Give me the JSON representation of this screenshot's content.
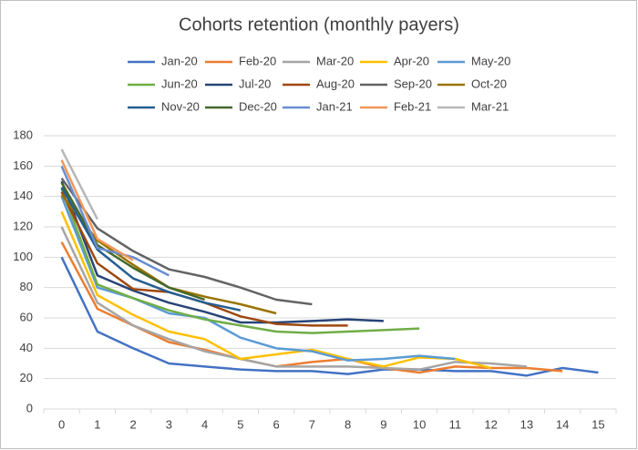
{
  "chart_data": {
    "type": "line",
    "title": "Cohorts retention (monthly payers)",
    "categories": [
      0,
      1,
      2,
      3,
      4,
      5,
      6,
      7,
      8,
      9,
      10,
      11,
      12,
      13,
      14,
      15
    ],
    "ylim": [
      0,
      180
    ],
    "yticks": [
      0,
      20,
      40,
      60,
      80,
      100,
      120,
      140,
      160,
      180
    ],
    "grid": true,
    "legend": "top",
    "series": [
      {
        "name": "Jan-20",
        "color": "#4472C4",
        "values": [
          100,
          51,
          40,
          30,
          28,
          26,
          25,
          25,
          23,
          26,
          26,
          25,
          25,
          22,
          27,
          24
        ]
      },
      {
        "name": "Feb-20",
        "color": "#ED7D31",
        "values": [
          110,
          66,
          55,
          44,
          39,
          33,
          28,
          31,
          33,
          27,
          24,
          28,
          27,
          27,
          25,
          null
        ]
      },
      {
        "name": "Mar-20",
        "color": "#A5A5A5",
        "values": [
          120,
          70,
          55,
          46,
          38,
          33,
          28,
          28,
          28,
          27,
          26,
          31,
          30,
          28,
          null,
          null
        ]
      },
      {
        "name": "Apr-20",
        "color": "#FFC000",
        "values": [
          130,
          75,
          62,
          51,
          46,
          33,
          36,
          39,
          33,
          28,
          34,
          33,
          27,
          null,
          null,
          null
        ]
      },
      {
        "name": "May-20",
        "color": "#5B9BD5",
        "values": [
          140,
          80,
          73,
          63,
          60,
          47,
          40,
          38,
          32,
          33,
          35,
          33,
          null,
          null,
          null,
          null
        ]
      },
      {
        "name": "Jun-20",
        "color": "#70AD47",
        "values": [
          145,
          82,
          73,
          65,
          59,
          55,
          51,
          50,
          51,
          52,
          53,
          null,
          null,
          null,
          null,
          null
        ]
      },
      {
        "name": "Jul-20",
        "color": "#264478",
        "values": [
          150,
          88,
          78,
          70,
          64,
          57,
          57,
          58,
          59,
          58,
          null,
          null,
          null,
          null,
          null,
          null
        ]
      },
      {
        "name": "Aug-20",
        "color": "#9E480E",
        "values": [
          143,
          96,
          79,
          77,
          70,
          61,
          56,
          55,
          55,
          null,
          null,
          null,
          null,
          null,
          null,
          null
        ]
      },
      {
        "name": "Sep-20",
        "color": "#636363",
        "values": [
          152,
          119,
          104,
          92,
          87,
          80,
          72,
          69,
          null,
          null,
          null,
          null,
          null,
          null,
          null,
          null
        ]
      },
      {
        "name": "Oct-20",
        "color": "#997300",
        "values": [
          141,
          111,
          95,
          80,
          74,
          69,
          63,
          null,
          null,
          null,
          null,
          null,
          null,
          null,
          null,
          null
        ]
      },
      {
        "name": "Nov-20",
        "color": "#255E91",
        "values": [
          146,
          105,
          86,
          77,
          70,
          65,
          null,
          null,
          null,
          null,
          null,
          null,
          null,
          null,
          null,
          null
        ]
      },
      {
        "name": "Dec-20",
        "color": "#43682B",
        "values": [
          149,
          108,
          93,
          80,
          72,
          null,
          null,
          null,
          null,
          null,
          null,
          null,
          null,
          null,
          null,
          null
        ]
      },
      {
        "name": "Jan-21",
        "color": "#698ED0",
        "values": [
          160,
          106,
          100,
          88,
          null,
          null,
          null,
          null,
          null,
          null,
          null,
          null,
          null,
          null,
          null,
          null
        ]
      },
      {
        "name": "Feb-21",
        "color": "#F1975A",
        "values": [
          164,
          112,
          98,
          null,
          null,
          null,
          null,
          null,
          null,
          null,
          null,
          null,
          null,
          null,
          null,
          null
        ]
      },
      {
        "name": "Mar-21",
        "color": "#B7B7B7",
        "values": [
          171,
          125,
          null,
          null,
          null,
          null,
          null,
          null,
          null,
          null,
          null,
          null,
          null,
          null,
          null,
          null
        ]
      }
    ]
  }
}
